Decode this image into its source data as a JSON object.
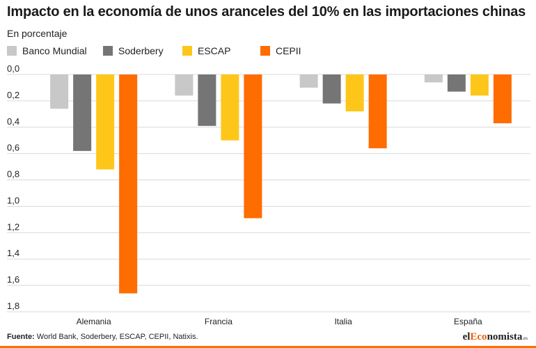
{
  "title": "Impacto en la economía de unos aranceles del 10% en las importaciones chinas",
  "subtitle": "En porcentaje",
  "footer": {
    "source_label": "Fuente:",
    "source_text": "World Bank, Soderbery, ESCAP, CEPII, Natixis."
  },
  "brand": {
    "part1": "el",
    "part2": "Eco",
    "part3": "nomista",
    "suffix": ".es"
  },
  "colors": {
    "banco_mundial": "#c8c8c8",
    "soderbery": "#757575",
    "escap": "#ffc61a",
    "cepii": "#ff6c00",
    "grid": "#d9d9d9",
    "brand_bar": "#ff6c00"
  },
  "chart_data": {
    "type": "bar",
    "title": "Impacto en la economía de unos aranceles del 10% en las importaciones chinas",
    "ylabel": "En porcentaje",
    "categories": [
      "Alemania",
      "Francia",
      "Italia",
      "España"
    ],
    "series": [
      {
        "name": "Banco Mundial",
        "color": "#c8c8c8",
        "values": [
          0.26,
          0.16,
          0.1,
          0.06
        ]
      },
      {
        "name": "Soderbery",
        "color": "#757575",
        "values": [
          0.58,
          0.39,
          0.22,
          0.13
        ]
      },
      {
        "name": "ESCAP",
        "color": "#ffc61a",
        "values": [
          0.72,
          0.5,
          0.28,
          0.16
        ]
      },
      {
        "name": "CEPII",
        "color": "#ff6c00",
        "values": [
          1.66,
          1.09,
          0.56,
          0.37
        ]
      }
    ],
    "ylim": [
      0,
      1.8
    ],
    "y_direction": "down",
    "yticks": [
      "0,0",
      "0,2",
      "0,4",
      "0,6",
      "0,8",
      "1,0",
      "1,2",
      "1,4",
      "1,6",
      "1,8"
    ],
    "grid": true,
    "legend_position": "top-left"
  }
}
